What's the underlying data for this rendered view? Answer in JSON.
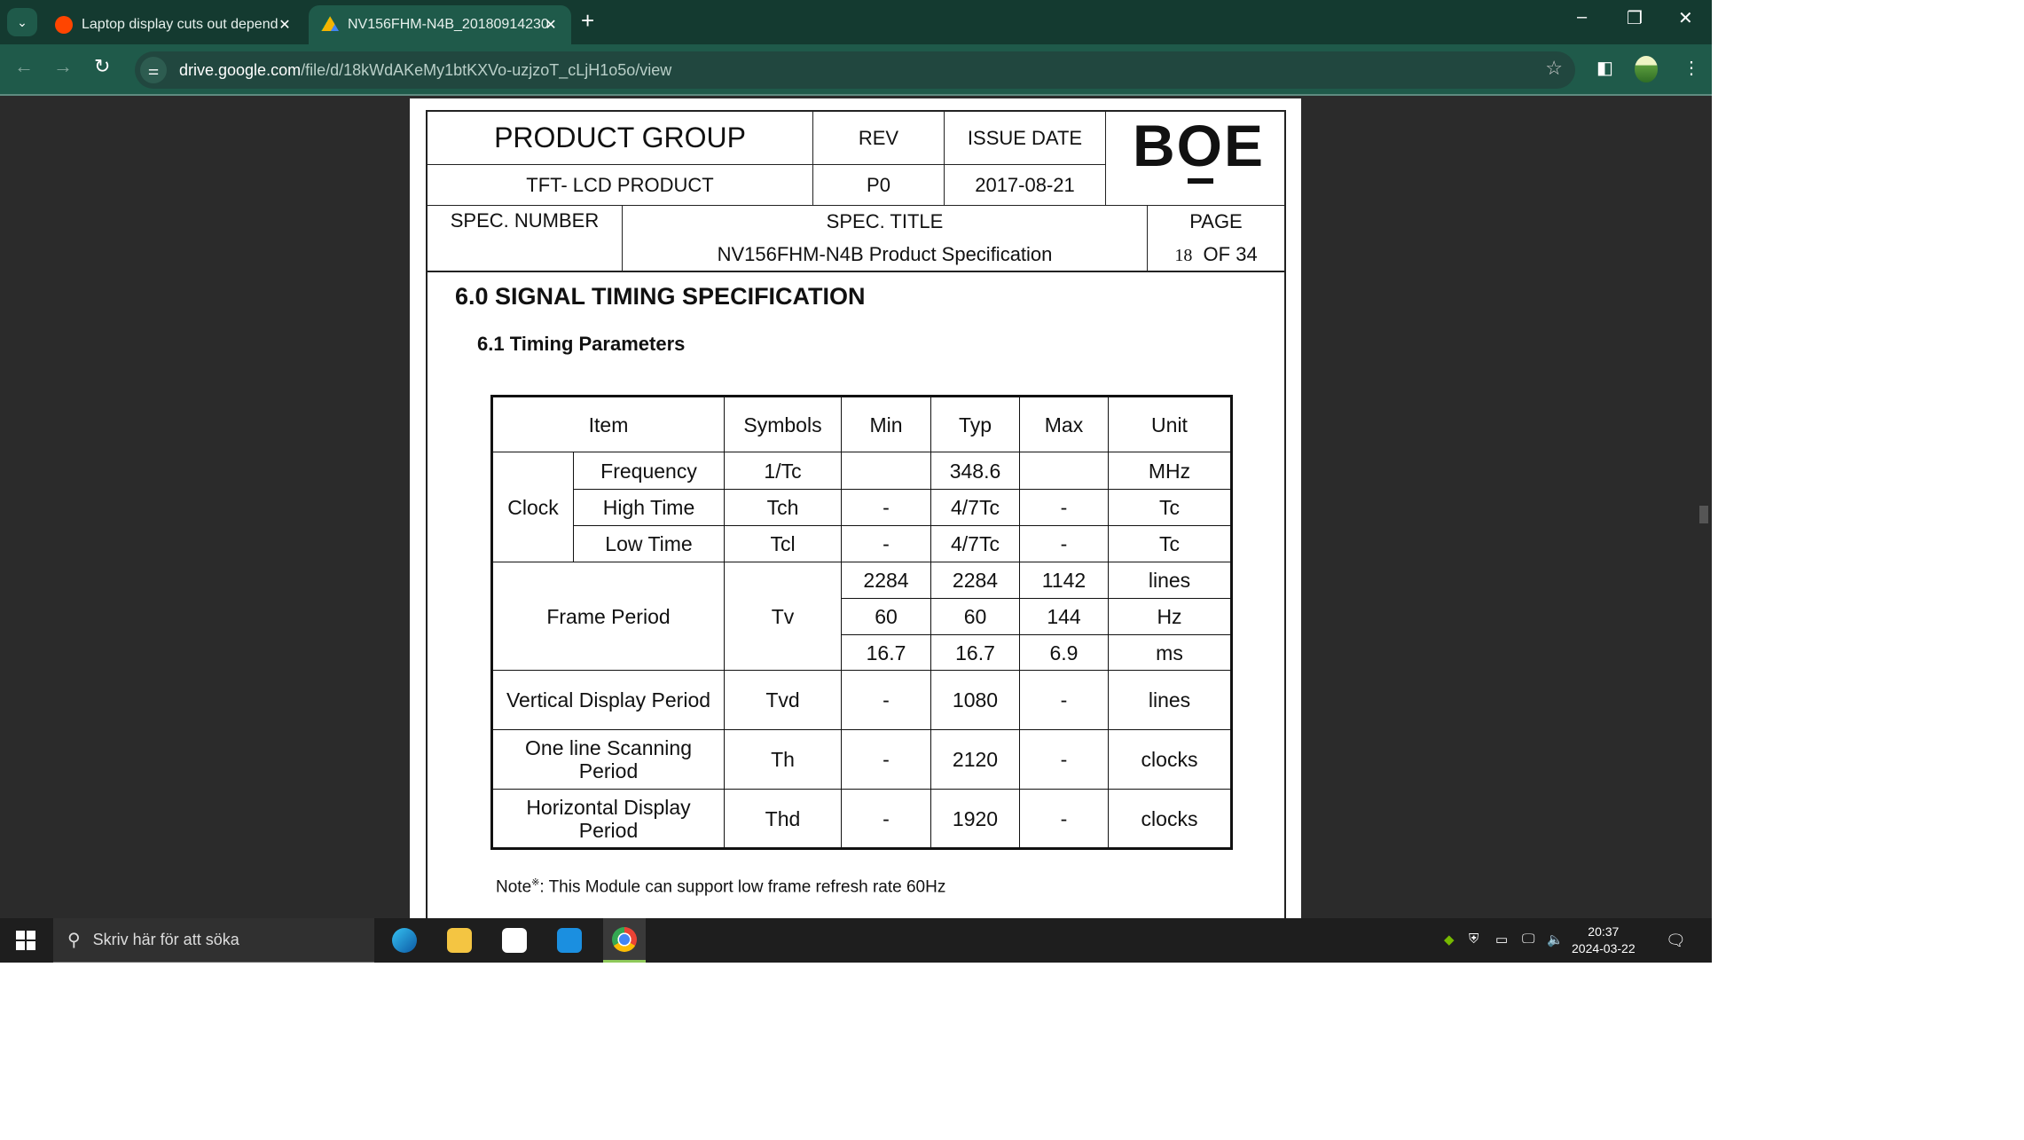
{
  "browser": {
    "tabs": [
      {
        "title": "Laptop display cuts out depend",
        "favicon": "reddit-icon",
        "active": false
      },
      {
        "title": "NV156FHM-N4B_20180914230",
        "favicon": "google-drive-icon",
        "active": true
      }
    ],
    "url_host": "drive.google.com",
    "url_path": "/file/d/18kWdAKeMy1btKXVo-uzjzoT_cLjH1o5o/view",
    "colors": {
      "frame": "#143a30",
      "toolbar": "#1f5a4a",
      "omnibox": "#21473f"
    }
  },
  "doc": {
    "header": {
      "product_group": "PRODUCT GROUP",
      "rev_label": "REV",
      "issue_date_label": "ISSUE DATE",
      "product": "TFT- LCD PRODUCT",
      "rev": "P0",
      "issue_date": "2017-08-21",
      "spec_number_label": "SPEC. NUMBER",
      "spec_title_label": "SPEC. TITLE",
      "spec_title": "NV156FHM-N4B  Product Specification",
      "page_label": "PAGE",
      "page_num": "18",
      "page_of": "OF 34",
      "logo": "BOE"
    },
    "heading": "6.0 SIGNAL TIMING SPECIFICATION",
    "subheading": "6.1 Timing Parameters",
    "table": {
      "headers": [
        "Item",
        "Symbols",
        "Min",
        "Typ",
        "Max",
        "Unit"
      ],
      "clock": {
        "label": "Clock",
        "rows": [
          {
            "sub": "Frequency",
            "sym": "1/Tc",
            "min": "",
            "typ": "348.6",
            "max": "",
            "unit": "MHz"
          },
          {
            "sub": "High Time",
            "sym": "Tch",
            "min": "-",
            "typ": "4/7Tc",
            "max": "-",
            "unit": "Tc"
          },
          {
            "sub": "Low Time",
            "sym": "Tcl",
            "min": "-",
            "typ": "4/7Tc",
            "max": "-",
            "unit": "Tc"
          }
        ]
      },
      "frame": {
        "label": "Frame Period",
        "sym": "Tv",
        "rows": [
          {
            "min": "2284",
            "typ": "2284",
            "max": "1142",
            "unit": "lines"
          },
          {
            "min": "60",
            "typ": "60",
            "max": "144",
            "unit": "Hz"
          },
          {
            "min": "16.7",
            "typ": "16.7",
            "max": "6.9",
            "unit": "ms"
          }
        ]
      },
      "rows": [
        {
          "item": "Vertical Display Period",
          "sym": "Tvd",
          "min": "-",
          "typ": "1080",
          "max": "-",
          "unit": "lines"
        },
        {
          "item": "One line Scanning Period",
          "sym": "Th",
          "min": "-",
          "typ": "2120",
          "max": "-",
          "unit": "clocks"
        },
        {
          "item": "Horizontal Display Period",
          "sym": "Thd",
          "min": "-",
          "typ": "1920",
          "max": "-",
          "unit": "clocks"
        }
      ]
    },
    "note_prefix": "Note",
    "note_mark": "※",
    "note": ":  This Module can support low frame refresh rate 60Hz"
  },
  "taskbar": {
    "search_placeholder": "Skriv här för att söka",
    "apps": [
      "edge-icon",
      "file-explorer-icon",
      "store-icon",
      "mail-icon",
      "chrome-icon"
    ],
    "time": "20:37",
    "date": "2024-03-22"
  }
}
